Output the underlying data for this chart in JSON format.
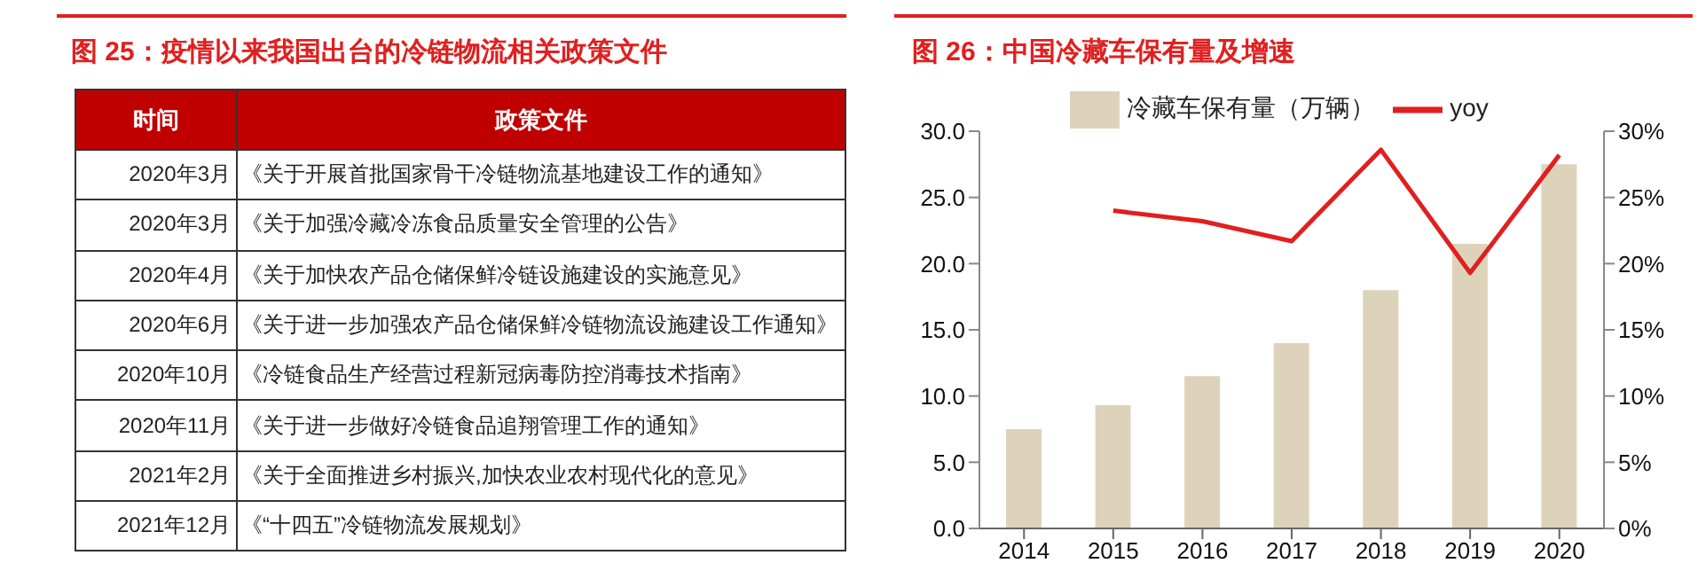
{
  "chart_data": [
    {
      "type": "other",
      "title": "图 25：疫情以来我国出台的冷链物流相关政策文件",
      "annotations": [
        "时间",
        "政策文件",
        "2020年3月",
        "《关于开展首批国家骨干冷链物流基地建设工作的通知》",
        "2020年3月",
        "《关于加强冷藏冷冻食品质量安全管理的公告》",
        "2020年4月",
        "《关于加快农产品仓储保鲜冷链设施建设的实施意见》",
        "2020年6月",
        "《关于进一步加强农产品仓储保鲜冷链物流设施建设工作通知》",
        "2020年10月",
        "《冷链食品生产经营过程新冠病毒防控消毒技术指南》",
        "2020年11月",
        "《关于进一步做好冷链食品追翔管理工作的通知》",
        "2021年2月",
        "《关于全面推进乡村振兴,加快农业农村现代化的意见》",
        "2021年12月",
        "《“十四五”冷链物流发展规划》"
      ]
    },
    {
      "type": "bar",
      "title": "图 26：中国冷藏车保有量及增速",
      "categories": [
        "2014",
        "2015",
        "2016",
        "2017",
        "2018",
        "2019",
        "2020"
      ],
      "series": [
        {
          "name": "冷藏车保有量（万辆）",
          "type": "bar",
          "color": "#ddd3bb",
          "values": [
            7.5,
            9.3,
            11.5,
            14.0,
            18.0,
            21.5,
            27.5
          ]
        },
        {
          "name": "yoy",
          "type": "line",
          "axis": "y2",
          "color": "#e02020",
          "values": [
            null,
            24.0,
            23.2,
            21.7,
            28.6,
            19.3,
            28.2
          ]
        }
      ],
      "ylim": [
        0,
        30
      ],
      "yticks": [
        {
          "value": 0,
          "label": "0.0"
        },
        {
          "value": 5,
          "label": "5.0"
        },
        {
          "value": 10,
          "label": "10.0"
        },
        {
          "value": 15,
          "label": "15.0"
        },
        {
          "value": 20,
          "label": "20.0"
        },
        {
          "value": 25,
          "label": "25.0"
        },
        {
          "value": 30,
          "label": "30.0"
        }
      ],
      "y2lim": [
        0,
        30
      ],
      "y2ticks": [
        {
          "value": 0,
          "label": "0%"
        },
        {
          "value": 5,
          "label": "5%"
        },
        {
          "value": 10,
          "label": "10%"
        },
        {
          "value": 15,
          "label": "15%"
        },
        {
          "value": 20,
          "label": "20%"
        },
        {
          "value": 25,
          "label": "25%"
        },
        {
          "value": 30,
          "label": "30%"
        }
      ],
      "legend": "top",
      "marker": "none"
    }
  ]
}
